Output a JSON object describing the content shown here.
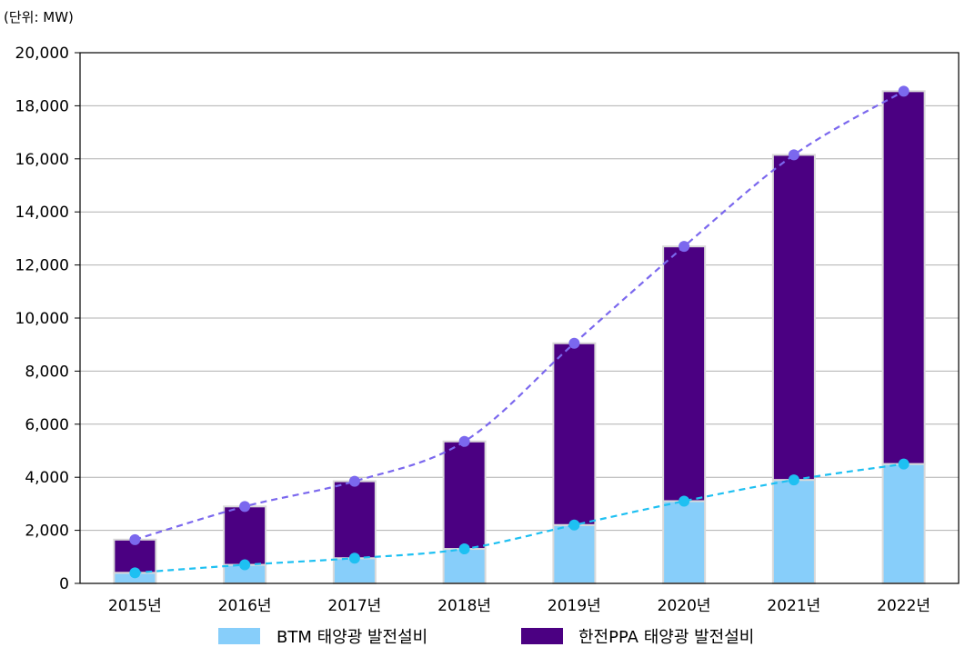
{
  "unit_label": "(단위: MW)",
  "chart_data": {
    "type": "bar",
    "stacked": true,
    "categories": [
      "2015년",
      "2016년",
      "2017년",
      "2018년",
      "2019년",
      "2020년",
      "2021년",
      "2022년"
    ],
    "series": [
      {
        "name": "BTM 태양광 발전설비",
        "color": "#87cefa",
        "line_color": "#1ec0f2",
        "values": [
          400,
          700,
          950,
          1300,
          2200,
          3100,
          3900,
          4500
        ]
      },
      {
        "name": "한전PPA 태양광 발전설비",
        "color": "#4b0082",
        "line_color": "#7b68ee",
        "values": [
          1250,
          2200,
          2900,
          4050,
          6850,
          9600,
          12250,
          14050
        ]
      }
    ],
    "totals": [
      1650,
      2900,
      3850,
      5350,
      9050,
      12700,
      16150,
      18550
    ],
    "ylim": [
      0,
      20000
    ],
    "yticks": [
      "0",
      "2,000",
      "4,000",
      "6,000",
      "8,000",
      "10,000",
      "12,000",
      "14,000",
      "16,000",
      "18,000",
      "20,000"
    ],
    "grid": true,
    "legend_position": "bottom"
  }
}
